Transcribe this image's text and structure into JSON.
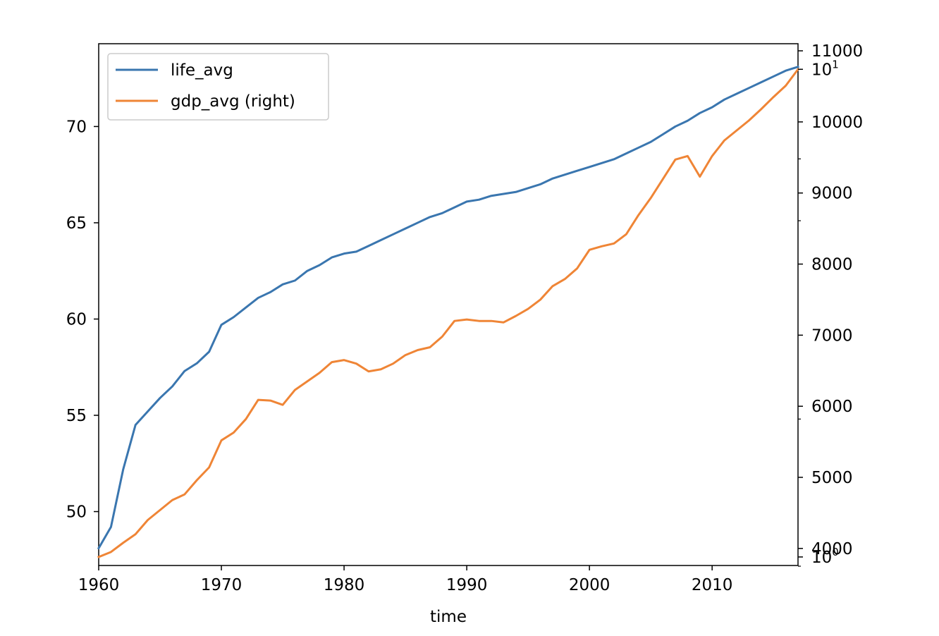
{
  "chart_data": {
    "type": "line",
    "xlabel": "time",
    "xlim": [
      1960,
      2017
    ],
    "x_ticks": [
      1960,
      1970,
      1980,
      1990,
      2000,
      2010
    ],
    "left_axis": {
      "ylim": [
        47.2,
        74.3
      ],
      "ticks": [
        50,
        55,
        60,
        65,
        70
      ]
    },
    "right_axis": {
      "ylim": [
        3760,
        11100
      ],
      "ticks": [
        4000,
        5000,
        6000,
        7000,
        8000,
        9000,
        10000,
        11000
      ],
      "minor_ticks": [
        3750,
        5820,
        8610,
        9480,
        10740
      ],
      "log_labels": [
        {
          "base": "10",
          "exp": "1",
          "value": 10740
        },
        {
          "base": "10",
          "exp": "0",
          "value": 3880
        }
      ]
    },
    "legend_position": "upper-left",
    "series": [
      {
        "name": "life_avg",
        "axis": "left",
        "color": "#3a76af",
        "x": [
          1960,
          1961,
          1962,
          1963,
          1964,
          1965,
          1966,
          1967,
          1968,
          1969,
          1970,
          1971,
          1972,
          1973,
          1974,
          1975,
          1976,
          1977,
          1978,
          1979,
          1980,
          1981,
          1982,
          1983,
          1984,
          1985,
          1986,
          1987,
          1988,
          1989,
          1990,
          1991,
          1992,
          1993,
          1994,
          1995,
          1996,
          1997,
          1998,
          1999,
          2000,
          2001,
          2002,
          2003,
          2004,
          2005,
          2006,
          2007,
          2008,
          2009,
          2010,
          2011,
          2012,
          2013,
          2014,
          2015,
          2016,
          2017
        ],
        "values": [
          48.1,
          49.2,
          52.2,
          54.5,
          55.2,
          55.9,
          56.5,
          57.3,
          57.7,
          58.3,
          59.7,
          60.1,
          60.6,
          61.1,
          61.4,
          61.8,
          62.0,
          62.5,
          62.8,
          63.2,
          63.4,
          63.5,
          63.8,
          64.1,
          64.4,
          64.7,
          65.0,
          65.3,
          65.5,
          65.8,
          66.1,
          66.2,
          66.4,
          66.5,
          66.6,
          66.8,
          67.0,
          67.3,
          67.5,
          67.7,
          67.9,
          68.1,
          68.3,
          68.6,
          68.9,
          69.2,
          69.6,
          70.0,
          70.3,
          70.7,
          71.0,
          71.4,
          71.7,
          72.0,
          72.3,
          72.6,
          72.9,
          73.1
        ]
      },
      {
        "name": "gdp_avg (right)",
        "axis": "right",
        "color": "#ef8536",
        "x": [
          1960,
          1961,
          1962,
          1963,
          1964,
          1965,
          1966,
          1967,
          1968,
          1969,
          1970,
          1971,
          1972,
          1973,
          1974,
          1975,
          1976,
          1977,
          1978,
          1979,
          1980,
          1981,
          1982,
          1983,
          1984,
          1985,
          1986,
          1987,
          1988,
          1989,
          1990,
          1991,
          1992,
          1993,
          1994,
          1995,
          1996,
          1997,
          1998,
          1999,
          2000,
          2001,
          2002,
          2003,
          2004,
          2005,
          2006,
          2007,
          2008,
          2009,
          2010,
          2011,
          2012,
          2013,
          2014,
          2015,
          2016,
          2017
        ],
        "values": [
          3880,
          3950,
          4080,
          4200,
          4400,
          4540,
          4680,
          4760,
          4960,
          5140,
          5520,
          5630,
          5820,
          6090,
          6080,
          6020,
          6230,
          6350,
          6470,
          6620,
          6650,
          6600,
          6490,
          6520,
          6600,
          6720,
          6790,
          6830,
          6980,
          7200,
          7220,
          7200,
          7200,
          7180,
          7270,
          7370,
          7500,
          7690,
          7790,
          7940,
          8200,
          8250,
          8290,
          8420,
          8690,
          8930,
          9200,
          9470,
          9520,
          9230,
          9520,
          9740,
          9880,
          10020,
          10180,
          10350,
          10510,
          10740
        ]
      }
    ]
  }
}
